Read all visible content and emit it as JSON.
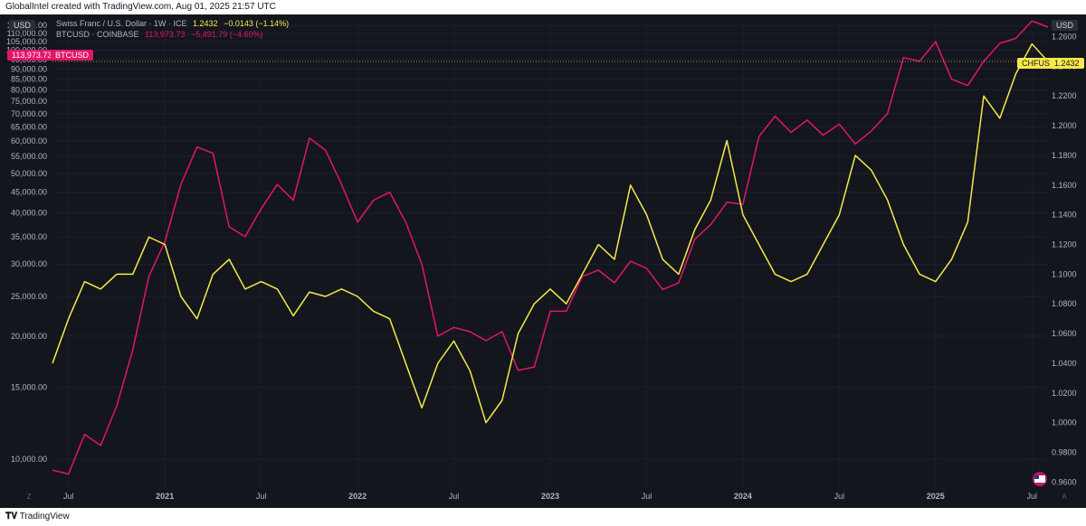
{
  "header": {
    "text": "GlobalIntel created with TradingView.com, Aug 01, 2025 21:57 UTC"
  },
  "footer": {
    "brand": "TradingView"
  },
  "currency_left": "USD",
  "currency_right": "USD",
  "legend": {
    "s1_name": "Swiss Franc / U.S. Dollar · 1W · ICE",
    "s1_value": "1.2432",
    "s1_change": "−0.0143 (−1.14%)",
    "s2_name": "BTCUSD · COINBASE",
    "s2_value": "113,973.73",
    "s2_change": "−5,491.79 (−4.60%)"
  },
  "price_tags": {
    "btc_value": "113,973.73",
    "btc_label": "BTCUSD",
    "chf_label": "CHFUSD",
    "chf_value": "1.2432"
  },
  "colors": {
    "btc": "#e3156b",
    "chf": "#f6e94b",
    "background": "#14161d",
    "text": "#d1d4dc"
  },
  "chart_data": {
    "type": "line",
    "x_ticks": [
      "Jul",
      "2021",
      "Jul",
      "2022",
      "Jul",
      "2023",
      "Jul",
      "2024",
      "Jul",
      "2025",
      "Jul"
    ],
    "x_range": [
      "2020-06",
      "2025-08"
    ],
    "left_axis": {
      "ticks": [
        "10,000.00",
        "15,000.00",
        "20,000.00",
        "25,000.00",
        "30,000.00",
        "35,000.00",
        "40,000.00",
        "45,000.00",
        "50,000.00",
        "55,000.00",
        "60,000.00",
        "65,000.00",
        "70,000.00",
        "75,000.00",
        "80,000.00",
        "85,000.00",
        "90,000.00",
        "95,000.00",
        "100,000.00",
        "105,000.00",
        "110,000.00",
        "115,000.00"
      ],
      "range": [
        8500,
        117500
      ],
      "scale": "log"
    },
    "right_axis": {
      "ticks": [
        "0.9600",
        "0.9800",
        "1.0000",
        "1.0200",
        "1.0400",
        "1.0600",
        "1.0800",
        "1.1000",
        "1.1200",
        "1.1400",
        "1.1600",
        "1.1800",
        "1.2000",
        "1.2200",
        "1.2400",
        "1.2600"
      ],
      "range": [
        0.956,
        1.27
      ]
    },
    "series": [
      {
        "name": "BTCUSD · COINBASE",
        "axis": "left",
        "color": "#e3156b",
        "x": [
          "2020-06",
          "2020-07",
          "2020-08",
          "2020-09",
          "2020-10",
          "2020-11",
          "2020-12",
          "2021-01",
          "2021-02",
          "2021-03",
          "2021-04",
          "2021-05",
          "2021-06",
          "2021-07",
          "2021-08",
          "2021-09",
          "2021-10",
          "2021-11",
          "2021-12",
          "2022-01",
          "2022-02",
          "2022-03",
          "2022-04",
          "2022-05",
          "2022-06",
          "2022-07",
          "2022-08",
          "2022-09",
          "2022-10",
          "2022-11",
          "2022-12",
          "2023-01",
          "2023-02",
          "2023-03",
          "2023-04",
          "2023-05",
          "2023-06",
          "2023-07",
          "2023-08",
          "2023-09",
          "2023-10",
          "2023-11",
          "2023-12",
          "2024-01",
          "2024-02",
          "2024-03",
          "2024-04",
          "2024-05",
          "2024-06",
          "2024-07",
          "2024-08",
          "2024-09",
          "2024-10",
          "2024-11",
          "2024-12",
          "2025-01",
          "2025-02",
          "2025-03",
          "2025-04",
          "2025-05",
          "2025-06",
          "2025-07",
          "2025-08"
        ],
        "y": [
          9400,
          9200,
          11500,
          10800,
          13500,
          18500,
          28000,
          34000,
          47000,
          58000,
          56000,
          37000,
          35000,
          41000,
          47000,
          43000,
          61000,
          57000,
          47000,
          38000,
          43000,
          45000,
          38000,
          30000,
          20000,
          21000,
          20500,
          19500,
          20500,
          16500,
          16800,
          23000,
          23000,
          28000,
          29000,
          27000,
          30500,
          29300,
          26000,
          27000,
          34500,
          37500,
          42500,
          42000,
          61500,
          69000,
          63000,
          67500,
          62000,
          66000,
          59000,
          63500,
          70000,
          96000,
          94000,
          105000,
          85000,
          82000,
          94000,
          104000,
          107000,
          118000,
          113973.73
        ]
      },
      {
        "name": "Swiss Franc / U.S. Dollar · 1W · ICE",
        "axis": "right",
        "color": "#f6e94b",
        "x": [
          "2020-06",
          "2020-07",
          "2020-08",
          "2020-09",
          "2020-10",
          "2020-11",
          "2020-12",
          "2021-01",
          "2021-02",
          "2021-03",
          "2021-04",
          "2021-05",
          "2021-06",
          "2021-07",
          "2021-08",
          "2021-09",
          "2021-10",
          "2021-11",
          "2021-12",
          "2022-01",
          "2022-02",
          "2022-03",
          "2022-04",
          "2022-05",
          "2022-06",
          "2022-07",
          "2022-08",
          "2022-09",
          "2022-10",
          "2022-11",
          "2022-12",
          "2023-01",
          "2023-02",
          "2023-03",
          "2023-04",
          "2023-05",
          "2023-06",
          "2023-07",
          "2023-08",
          "2023-09",
          "2023-10",
          "2023-11",
          "2023-12",
          "2024-01",
          "2024-02",
          "2024-03",
          "2024-04",
          "2024-05",
          "2024-06",
          "2024-07",
          "2024-08",
          "2024-09",
          "2024-10",
          "2024-11",
          "2024-12",
          "2025-01",
          "2025-02",
          "2025-03",
          "2025-04",
          "2025-05",
          "2025-06",
          "2025-07",
          "2025-08"
        ],
        "y": [
          1.04,
          1.07,
          1.095,
          1.09,
          1.1,
          1.1,
          1.125,
          1.12,
          1.085,
          1.07,
          1.1,
          1.11,
          1.09,
          1.095,
          1.09,
          1.072,
          1.088,
          1.085,
          1.09,
          1.085,
          1.075,
          1.07,
          1.04,
          1.01,
          1.04,
          1.055,
          1.035,
          1.0,
          1.015,
          1.06,
          1.08,
          1.09,
          1.08,
          1.1,
          1.12,
          1.11,
          1.16,
          1.14,
          1.11,
          1.1,
          1.13,
          1.15,
          1.19,
          1.14,
          1.12,
          1.1,
          1.095,
          1.1,
          1.12,
          1.14,
          1.18,
          1.17,
          1.15,
          1.12,
          1.1,
          1.095,
          1.11,
          1.135,
          1.22,
          1.205,
          1.235,
          1.255,
          1.2432
        ]
      }
    ]
  }
}
